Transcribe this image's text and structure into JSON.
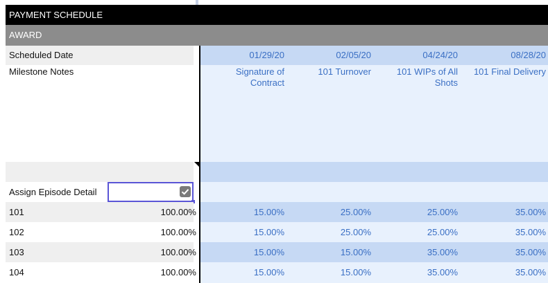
{
  "header": {
    "title": "PAYMENT SCHEDULE"
  },
  "award_bar": {
    "label": "AWARD"
  },
  "scheduled_date": {
    "label": "Scheduled Date",
    "dates": [
      "01/29/20",
      "02/05/20",
      "04/24/20",
      "08/28/20"
    ]
  },
  "milestone_notes": {
    "label": "Milestone Notes",
    "notes": [
      "Signature of Contract",
      "101 Turnover",
      "101 WIPs of All Shots",
      "101 Final Delivery"
    ]
  },
  "assign_episode": {
    "label": "Assign Episode Detail",
    "checked": true
  },
  "episodes": [
    {
      "name": "101",
      "total": "100.00%",
      "values": [
        "15.00%",
        "25.00%",
        "25.00%",
        "35.00%"
      ]
    },
    {
      "name": "102",
      "total": "100.00%",
      "values": [
        "15.00%",
        "25.00%",
        "25.00%",
        "35.00%"
      ]
    },
    {
      "name": "103",
      "total": "100.00%",
      "values": [
        "15.00%",
        "15.00%",
        "35.00%",
        "35.00%"
      ]
    },
    {
      "name": "104",
      "total": "100.00%",
      "values": [
        "15.00%",
        "15.00%",
        "35.00%",
        "35.00%"
      ]
    }
  ],
  "colors": {
    "header_bg": "#000000",
    "award_bg": "#8c8c8c",
    "blue_band": "#c6d9f4",
    "light_blue": "#e8f1fd",
    "gray_cell": "#efefef",
    "link_blue": "#3a6fc4",
    "focus_border": "#5a55d6"
  }
}
